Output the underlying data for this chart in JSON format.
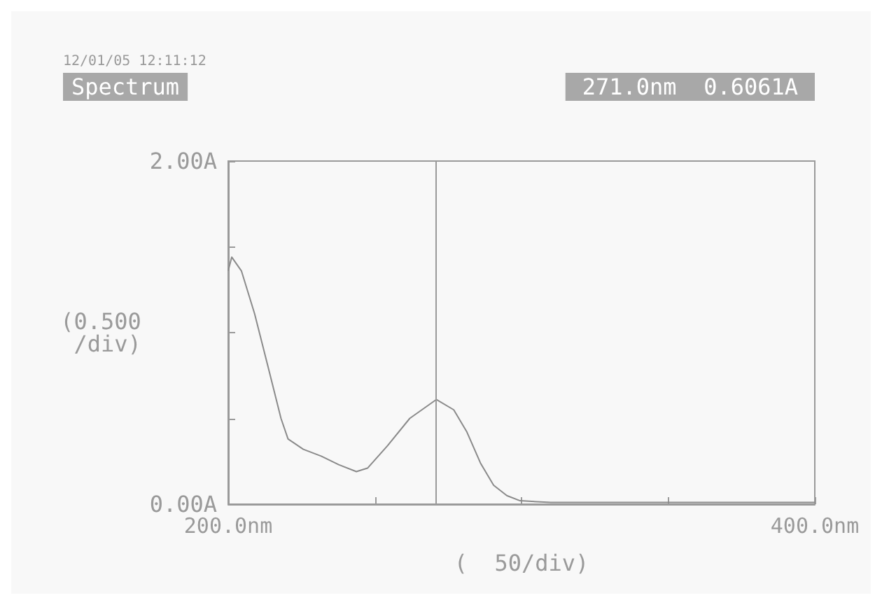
{
  "chart_data": {
    "type": "line",
    "title": "Spectrum",
    "xlabel": "(  50/div)",
    "ylabel": "(0.500\n/div)",
    "annotations": [
      "12/01/05 12:11:12",
      "271.0nm  0.6061A"
    ],
    "series": [
      {
        "color": "#8a8a8a",
        "x": [
          200,
          201.2,
          204.5,
          209,
          213.6,
          218,
          220.4,
          225.6,
          231.7,
          237.7,
          243.7,
          247.5,
          254.3,
          261.9,
          271,
          276.9,
          281.4,
          286,
          290.5,
          295,
          299.5,
          310,
          330,
          360,
          400
        ],
        "values": [
          1.36,
          1.44,
          1.36,
          1.11,
          0.8,
          0.5,
          0.38,
          0.32,
          0.28,
          0.23,
          0.19,
          0.21,
          0.34,
          0.5,
          0.61,
          0.55,
          0.42,
          0.24,
          0.11,
          0.05,
          0.02,
          0.01,
          0.01,
          0.01,
          0.01
        ]
      }
    ],
    "xlim": [
      200,
      400
    ],
    "xticks": [
      {
        "value": 200,
        "label": "200.0nm"
      },
      {
        "value": 250,
        "label": null
      },
      {
        "value": 300,
        "label": null
      },
      {
        "value": 350,
        "label": null
      },
      {
        "value": 400,
        "label": "400.0nm"
      }
    ],
    "ylim": [
      0,
      2
    ],
    "yticks": [
      {
        "value": 0,
        "label": "0.00A"
      },
      {
        "value": 0.5,
        "label": null
      },
      {
        "value": 1,
        "label": null
      },
      {
        "value": 1.5,
        "label": null
      },
      {
        "value": 2,
        "label": "2.00A"
      }
    ],
    "ref_lines": [
      {
        "axis": "x",
        "value": 271,
        "color": "#9a9a9a"
      }
    ],
    "grid": false,
    "marker": "none",
    "line_style": "solid"
  }
}
